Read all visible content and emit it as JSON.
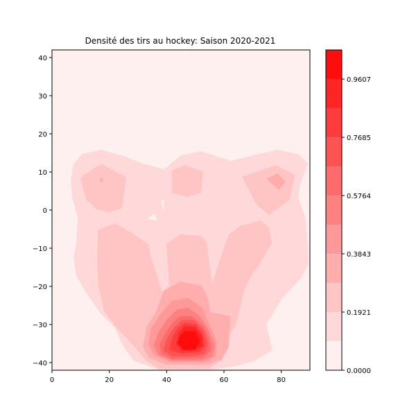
{
  "chart_data": {
    "type": "contour",
    "title": "Densité des tirs au hockey: Saison 2020-2021",
    "xlabel": "",
    "ylabel": "",
    "xlim": [
      0,
      90
    ],
    "ylim": [
      -42,
      42
    ],
    "x_ticks": [
      "0",
      "20",
      "40",
      "60",
      "80"
    ],
    "y_ticks": [
      "40",
      "30",
      "20",
      "10",
      "0",
      "−10",
      "−20",
      "−30",
      "−40"
    ],
    "colorbar": {
      "ticks": [
        "0.0000",
        "0.1921",
        "0.3843",
        "0.5764",
        "0.7685",
        "0.9607"
      ],
      "levels": [
        0.0,
        0.096,
        0.192,
        0.288,
        0.384,
        0.48,
        0.576,
        0.672,
        0.768,
        0.865,
        0.961,
        1.057
      ],
      "colors": [
        "#fff0f0",
        "#ffd9d9",
        "#ffc4c4",
        "#ffadad",
        "#ff9999",
        "#ff8080",
        "#ff6a6a",
        "#ff5252",
        "#ff3b3b",
        "#ff2525",
        "#ff0d0d"
      ]
    },
    "density_peaks": [
      {
        "x": 48,
        "y": -35,
        "level": 0.96
      },
      {
        "x": 17,
        "y": 7,
        "level": 0.25
      },
      {
        "x": 48,
        "y": 8,
        "level": 0.2
      },
      {
        "x": 80,
        "y": 8,
        "level": 0.3
      }
    ],
    "grid": false
  }
}
